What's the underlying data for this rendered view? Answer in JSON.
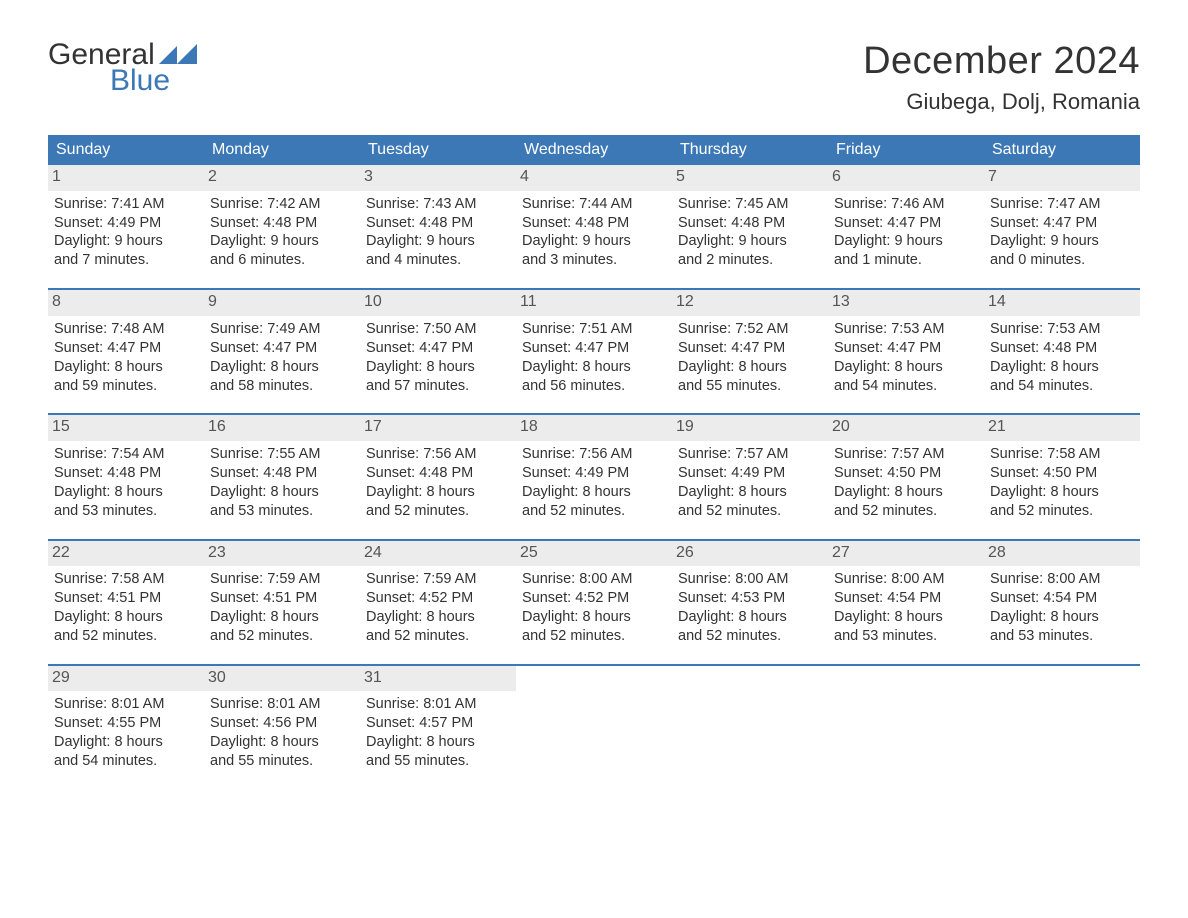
{
  "logo": {
    "line1": "General",
    "line2": "Blue",
    "brand_color": "#3b78b5"
  },
  "title": {
    "month": "December 2024",
    "location": "Giubega, Dolj, Romania"
  },
  "colors": {
    "header_bg": "#3b78b5",
    "header_text": "#ffffff",
    "daynum_bg": "#ececec",
    "daynum_text": "#555555",
    "body_text": "#333333",
    "background": "#ffffff"
  },
  "dows": [
    "Sunday",
    "Monday",
    "Tuesday",
    "Wednesday",
    "Thursday",
    "Friday",
    "Saturday"
  ],
  "weeks": [
    [
      {
        "day": "1",
        "sunrise": "7:41 AM",
        "sunset": "4:49 PM",
        "daylight1": "Daylight: 9 hours",
        "daylight2": "and 7 minutes."
      },
      {
        "day": "2",
        "sunrise": "7:42 AM",
        "sunset": "4:48 PM",
        "daylight1": "Daylight: 9 hours",
        "daylight2": "and 6 minutes."
      },
      {
        "day": "3",
        "sunrise": "7:43 AM",
        "sunset": "4:48 PM",
        "daylight1": "Daylight: 9 hours",
        "daylight2": "and 4 minutes."
      },
      {
        "day": "4",
        "sunrise": "7:44 AM",
        "sunset": "4:48 PM",
        "daylight1": "Daylight: 9 hours",
        "daylight2": "and 3 minutes."
      },
      {
        "day": "5",
        "sunrise": "7:45 AM",
        "sunset": "4:48 PM",
        "daylight1": "Daylight: 9 hours",
        "daylight2": "and 2 minutes."
      },
      {
        "day": "6",
        "sunrise": "7:46 AM",
        "sunset": "4:47 PM",
        "daylight1": "Daylight: 9 hours",
        "daylight2": "and 1 minute."
      },
      {
        "day": "7",
        "sunrise": "7:47 AM",
        "sunset": "4:47 PM",
        "daylight1": "Daylight: 9 hours",
        "daylight2": "and 0 minutes."
      }
    ],
    [
      {
        "day": "8",
        "sunrise": "7:48 AM",
        "sunset": "4:47 PM",
        "daylight1": "Daylight: 8 hours",
        "daylight2": "and 59 minutes."
      },
      {
        "day": "9",
        "sunrise": "7:49 AM",
        "sunset": "4:47 PM",
        "daylight1": "Daylight: 8 hours",
        "daylight2": "and 58 minutes."
      },
      {
        "day": "10",
        "sunrise": "7:50 AM",
        "sunset": "4:47 PM",
        "daylight1": "Daylight: 8 hours",
        "daylight2": "and 57 minutes."
      },
      {
        "day": "11",
        "sunrise": "7:51 AM",
        "sunset": "4:47 PM",
        "daylight1": "Daylight: 8 hours",
        "daylight2": "and 56 minutes."
      },
      {
        "day": "12",
        "sunrise": "7:52 AM",
        "sunset": "4:47 PM",
        "daylight1": "Daylight: 8 hours",
        "daylight2": "and 55 minutes."
      },
      {
        "day": "13",
        "sunrise": "7:53 AM",
        "sunset": "4:47 PM",
        "daylight1": "Daylight: 8 hours",
        "daylight2": "and 54 minutes."
      },
      {
        "day": "14",
        "sunrise": "7:53 AM",
        "sunset": "4:48 PM",
        "daylight1": "Daylight: 8 hours",
        "daylight2": "and 54 minutes."
      }
    ],
    [
      {
        "day": "15",
        "sunrise": "7:54 AM",
        "sunset": "4:48 PM",
        "daylight1": "Daylight: 8 hours",
        "daylight2": "and 53 minutes."
      },
      {
        "day": "16",
        "sunrise": "7:55 AM",
        "sunset": "4:48 PM",
        "daylight1": "Daylight: 8 hours",
        "daylight2": "and 53 minutes."
      },
      {
        "day": "17",
        "sunrise": "7:56 AM",
        "sunset": "4:48 PM",
        "daylight1": "Daylight: 8 hours",
        "daylight2": "and 52 minutes."
      },
      {
        "day": "18",
        "sunrise": "7:56 AM",
        "sunset": "4:49 PM",
        "daylight1": "Daylight: 8 hours",
        "daylight2": "and 52 minutes."
      },
      {
        "day": "19",
        "sunrise": "7:57 AM",
        "sunset": "4:49 PM",
        "daylight1": "Daylight: 8 hours",
        "daylight2": "and 52 minutes."
      },
      {
        "day": "20",
        "sunrise": "7:57 AM",
        "sunset": "4:50 PM",
        "daylight1": "Daylight: 8 hours",
        "daylight2": "and 52 minutes."
      },
      {
        "day": "21",
        "sunrise": "7:58 AM",
        "sunset": "4:50 PM",
        "daylight1": "Daylight: 8 hours",
        "daylight2": "and 52 minutes."
      }
    ],
    [
      {
        "day": "22",
        "sunrise": "7:58 AM",
        "sunset": "4:51 PM",
        "daylight1": "Daylight: 8 hours",
        "daylight2": "and 52 minutes."
      },
      {
        "day": "23",
        "sunrise": "7:59 AM",
        "sunset": "4:51 PM",
        "daylight1": "Daylight: 8 hours",
        "daylight2": "and 52 minutes."
      },
      {
        "day": "24",
        "sunrise": "7:59 AM",
        "sunset": "4:52 PM",
        "daylight1": "Daylight: 8 hours",
        "daylight2": "and 52 minutes."
      },
      {
        "day": "25",
        "sunrise": "8:00 AM",
        "sunset": "4:52 PM",
        "daylight1": "Daylight: 8 hours",
        "daylight2": "and 52 minutes."
      },
      {
        "day": "26",
        "sunrise": "8:00 AM",
        "sunset": "4:53 PM",
        "daylight1": "Daylight: 8 hours",
        "daylight2": "and 52 minutes."
      },
      {
        "day": "27",
        "sunrise": "8:00 AM",
        "sunset": "4:54 PM",
        "daylight1": "Daylight: 8 hours",
        "daylight2": "and 53 minutes."
      },
      {
        "day": "28",
        "sunrise": "8:00 AM",
        "sunset": "4:54 PM",
        "daylight1": "Daylight: 8 hours",
        "daylight2": "and 53 minutes."
      }
    ],
    [
      {
        "day": "29",
        "sunrise": "8:01 AM",
        "sunset": "4:55 PM",
        "daylight1": "Daylight: 8 hours",
        "daylight2": "and 54 minutes."
      },
      {
        "day": "30",
        "sunrise": "8:01 AM",
        "sunset": "4:56 PM",
        "daylight1": "Daylight: 8 hours",
        "daylight2": "and 55 minutes."
      },
      {
        "day": "31",
        "sunrise": "8:01 AM",
        "sunset": "4:57 PM",
        "daylight1": "Daylight: 8 hours",
        "daylight2": "and 55 minutes."
      },
      null,
      null,
      null,
      null
    ]
  ],
  "labels": {
    "sunrise_prefix": "Sunrise: ",
    "sunset_prefix": "Sunset: "
  }
}
